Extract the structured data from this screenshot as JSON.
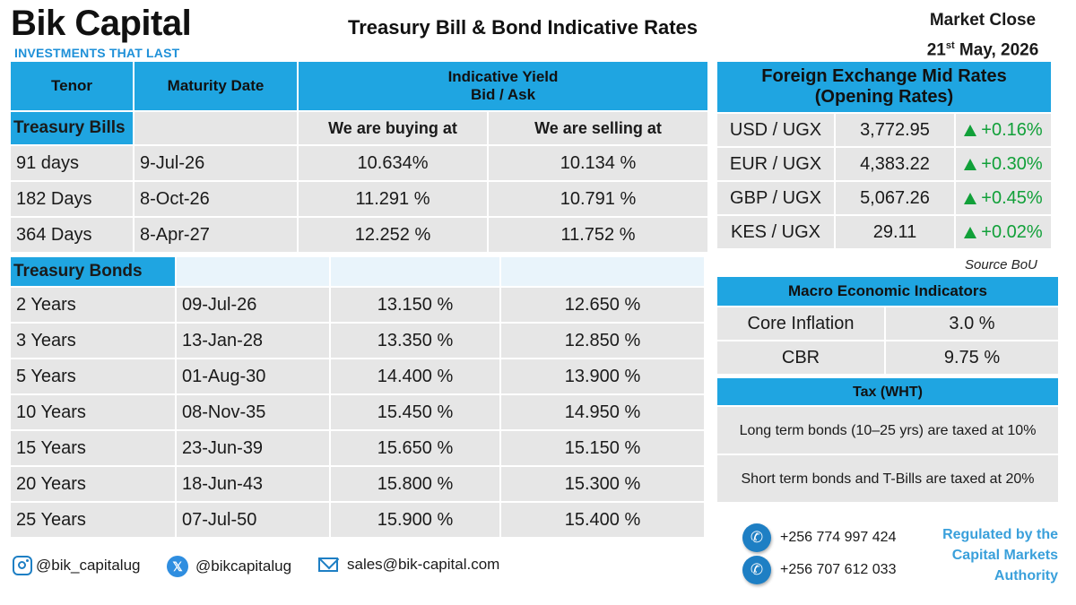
{
  "brand": {
    "name": "Bik Capital",
    "tagline": "INVESTMENTS THAT LAST"
  },
  "title": "Treasury Bill & Bond Indicative Rates",
  "market": {
    "label": "Market Close",
    "day": "21",
    "day_suffix": "st",
    "month_year": "May, 2026"
  },
  "yield_table": {
    "headers": {
      "tenor": "Tenor",
      "maturity": "Maturity Date",
      "yield_line1": "Indicative Yield",
      "yield_line2": "Bid / Ask"
    },
    "bills_label": "Treasury Bills",
    "buy_label": "We are buying at",
    "sell_label": "We are selling at",
    "bills": [
      {
        "tenor": "91 days",
        "maturity": "9-Jul-26",
        "buy": "10.634%",
        "sell": "10.134 %"
      },
      {
        "tenor": "182 Days",
        "maturity": "8-Oct-26",
        "buy": "11.291 %",
        "sell": "10.791 %"
      },
      {
        "tenor": "364 Days",
        "maturity": "8-Apr-27",
        "buy": "12.252 %",
        "sell": "11.752 %"
      }
    ],
    "bonds_label": "Treasury Bonds",
    "bonds": [
      {
        "tenor": "2 Years",
        "maturity": "09-Jul-26",
        "buy": "13.150 %",
        "sell": "12.650 %"
      },
      {
        "tenor": "3 Years",
        "maturity": "13-Jan-28",
        "buy": "13.350 %",
        "sell": "12.850 %"
      },
      {
        "tenor": "5 Years",
        "maturity": "01-Aug-30",
        "buy": "14.400 %",
        "sell": "13.900 %"
      },
      {
        "tenor": "10 Years",
        "maturity": "08-Nov-35",
        "buy": "15.450 %",
        "sell": "14.950 %"
      },
      {
        "tenor": "15 Years",
        "maturity": "23-Jun-39",
        "buy": "15.650 %",
        "sell": "15.150 %"
      },
      {
        "tenor": "20 Years",
        "maturity": "18-Jun-43",
        "buy": "15.800 %",
        "sell": "15.300 %"
      },
      {
        "tenor": "25 Years",
        "maturity": "07-Jul-50",
        "buy": "15.900 %",
        "sell": "15.400 %"
      }
    ]
  },
  "fx": {
    "title_line1": "Foreign Exchange Mid Rates",
    "title_line2": "(Opening Rates)",
    "rows": [
      {
        "pair": "USD / UGX",
        "rate": "3,772.95",
        "change": "+0.16%"
      },
      {
        "pair": "EUR / UGX",
        "rate": "4,383.22",
        "change": "+0.30%"
      },
      {
        "pair": "GBP / UGX",
        "rate": "5,067.26",
        "change": "+0.45%"
      },
      {
        "pair": "KES / UGX",
        "rate": "29.11",
        "change": "+0.02%"
      }
    ],
    "source": "Source BoU",
    "up_color": "#11a039"
  },
  "macro": {
    "title": "Macro Economic Indicators",
    "rows": [
      {
        "label": "Core Inflation",
        "value": "3.0 %"
      },
      {
        "label": "CBR",
        "value": "9.75 %"
      }
    ]
  },
  "tax": {
    "title": "Tax (WHT)",
    "rows": [
      "Long term bonds (10–25 yrs) are taxed at 10%",
      "Short term bonds and T-Bills are taxed at 20%"
    ]
  },
  "footer": {
    "instagram": "@bik_capitalug",
    "twitter": "@bikcapitalug",
    "email": "sales@bik-capital.com",
    "phones": [
      "+256 774 997 424",
      "+256 707 612 033"
    ],
    "regulated": "Regulated by the Capital Markets Authority"
  },
  "colors": {
    "accent": "#1fa5e1",
    "cell": "#e6e6e6",
    "brand_blue": "#1e90d8"
  }
}
